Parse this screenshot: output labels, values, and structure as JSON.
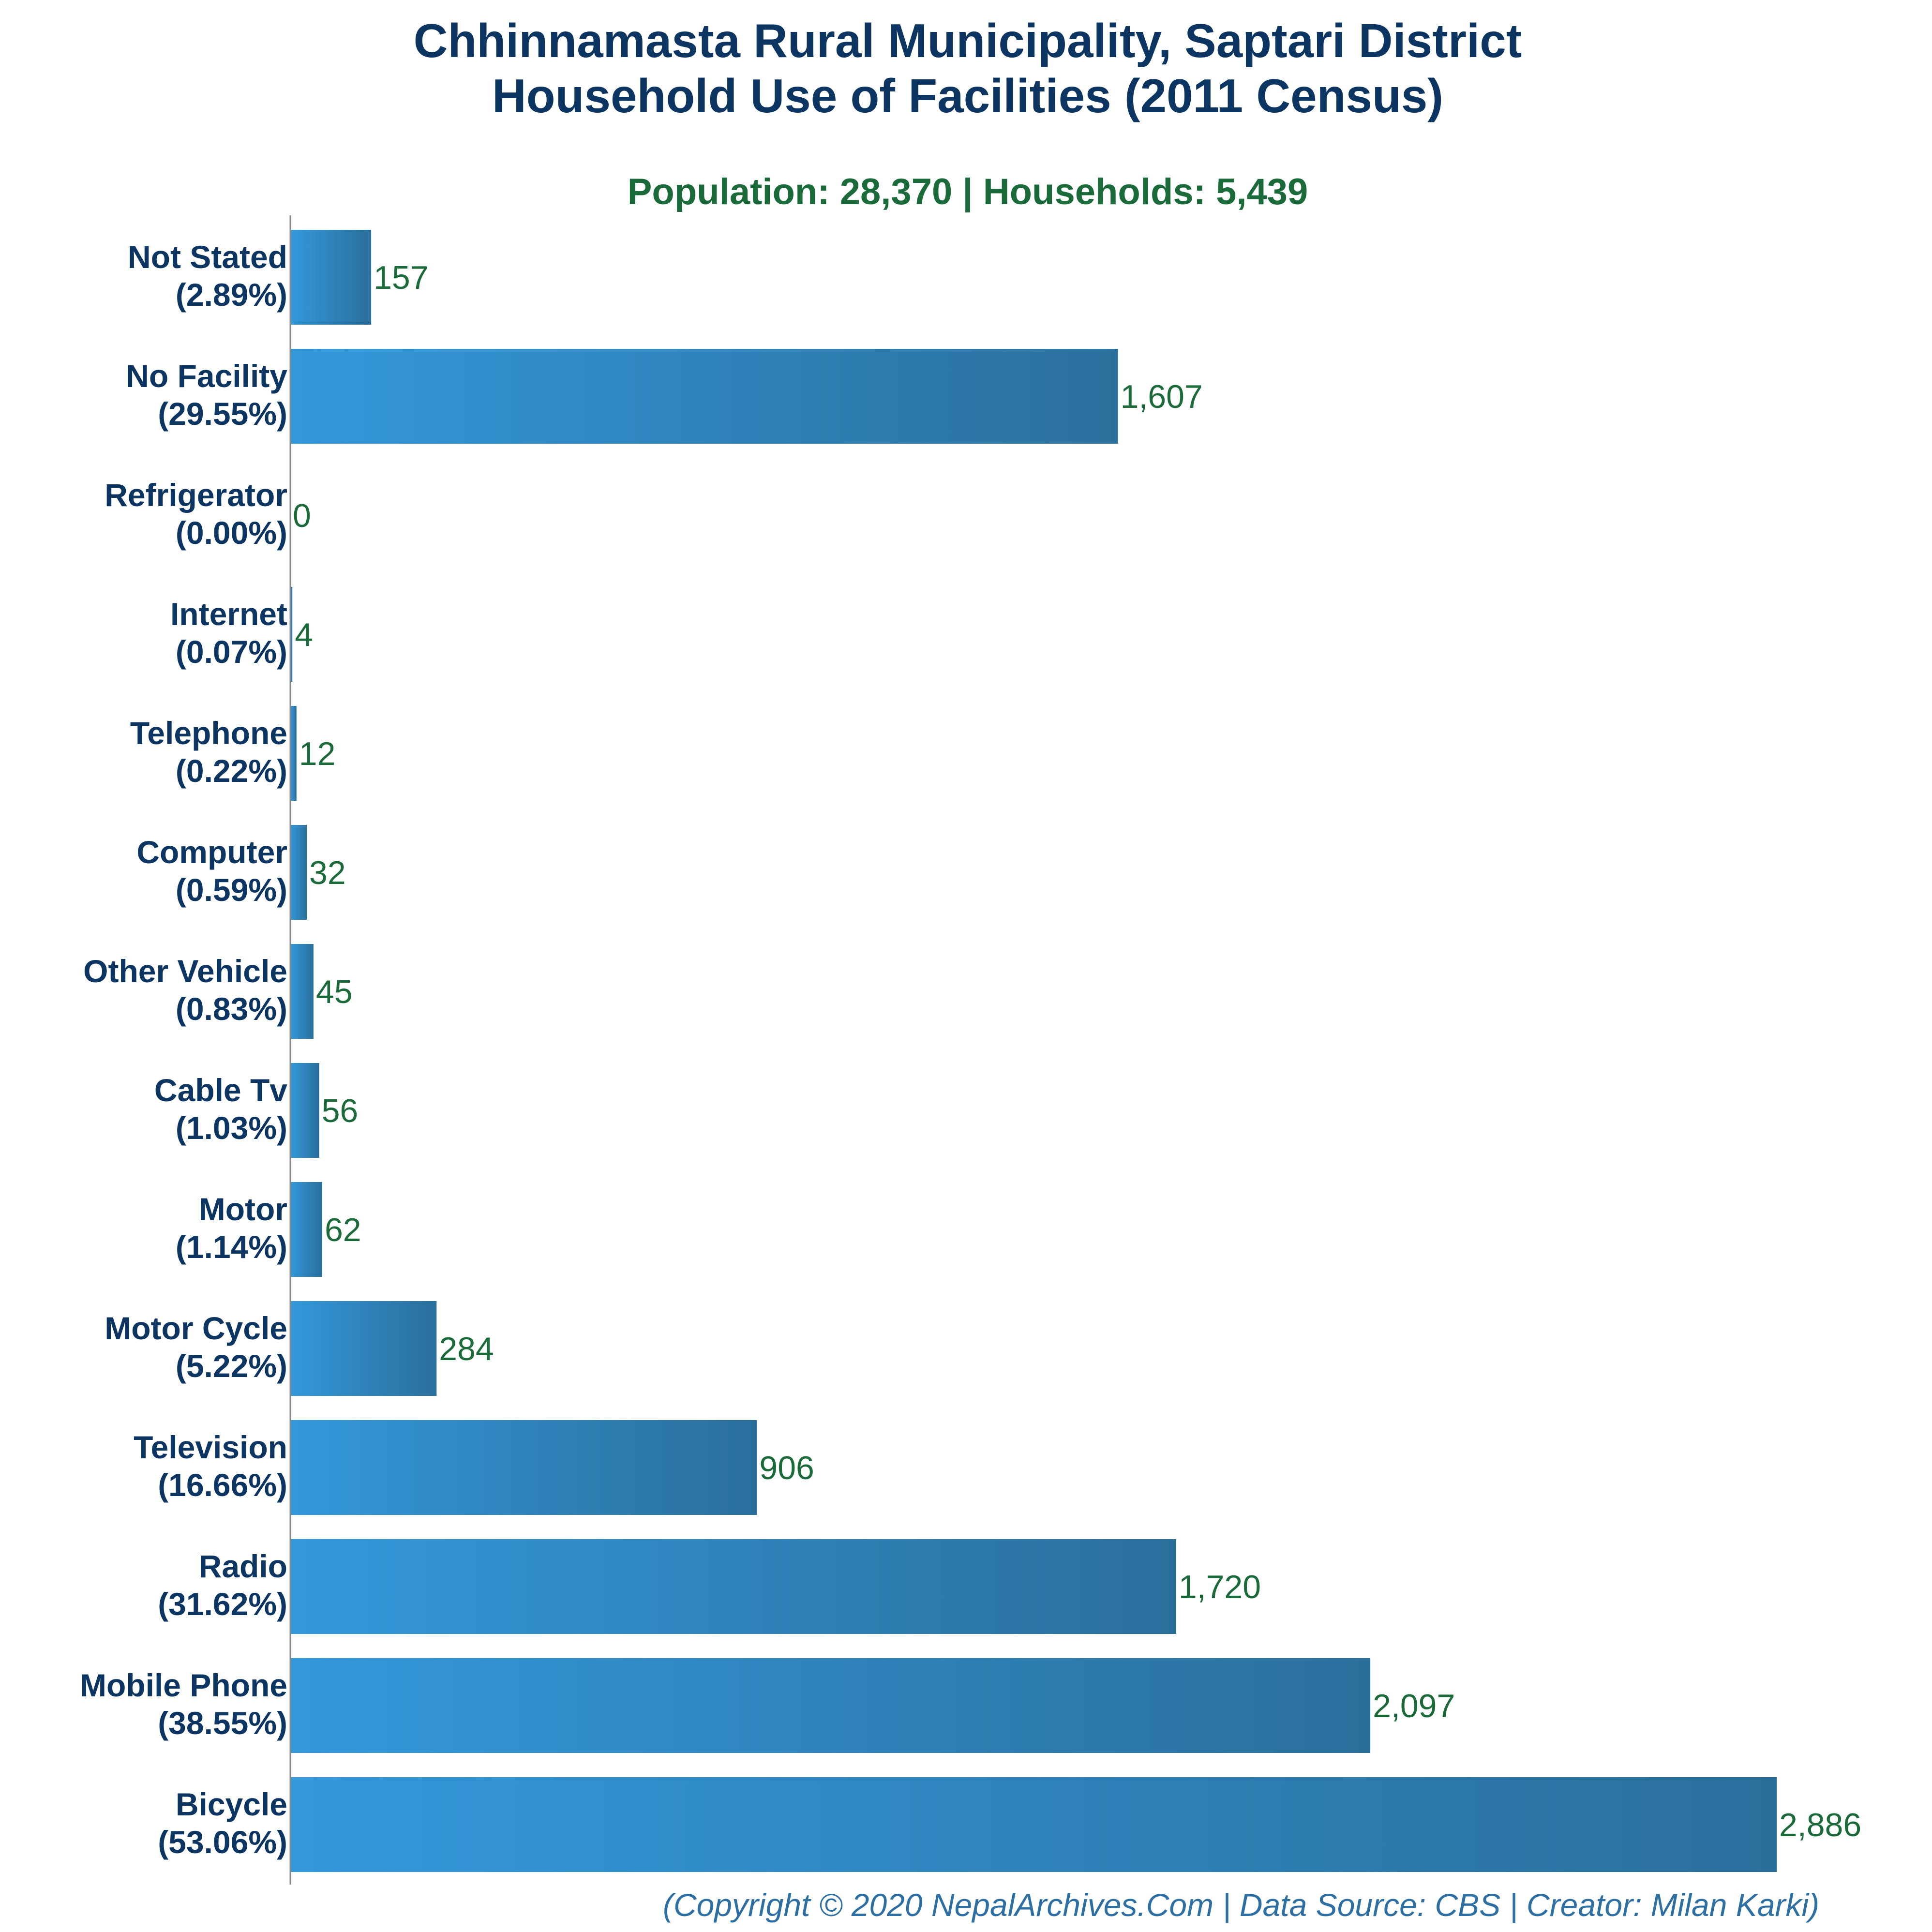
{
  "chart_data": {
    "type": "bar",
    "orientation": "horizontal",
    "title_lines": [
      "Chhinnamasta Rural Municipality, Saptari District",
      "Household Use of Facilities (2011 Census)"
    ],
    "subtitle": "Population: 28,370 | Households: 5,439",
    "categories": [
      "Not Stated",
      "No Facility",
      "Refrigerator",
      "Internet",
      "Telephone",
      "Computer",
      "Other Vehicle",
      "Cable Tv",
      "Motor",
      "Motor Cycle",
      "Television",
      "Radio",
      "Mobile Phone",
      "Bicycle"
    ],
    "percent_labels": [
      "(2.89%)",
      "(29.55%)",
      "(0.00%)",
      "(0.07%)",
      "(0.22%)",
      "(0.59%)",
      "(0.83%)",
      "(1.03%)",
      "(1.14%)",
      "(5.22%)",
      "(16.66%)",
      "(31.62%)",
      "(38.55%)",
      "(53.06%)"
    ],
    "values": [
      157,
      1607,
      0,
      4,
      12,
      32,
      45,
      56,
      62,
      284,
      906,
      1720,
      2097,
      2886
    ],
    "value_labels": [
      "157",
      "1,607",
      "0",
      "4",
      "12",
      "32",
      "45",
      "56",
      "62",
      "284",
      "906",
      "1,720",
      "2,097",
      "2,886"
    ],
    "xlim": [
      0,
      2886
    ],
    "grid": false,
    "legend": "none",
    "colors": {
      "bar_start": "#3498db",
      "bar_end": "#2a6f9c",
      "title": "#0d3561",
      "subtitle": "#1b6b3a",
      "value_label": "#1b6b3a",
      "footer": "#2d6fa3",
      "axis": "#888888"
    },
    "footer": "(Copyright © 2020 NepalArchives.Com | Data Source: CBS | Creator: Milan Karki)"
  }
}
